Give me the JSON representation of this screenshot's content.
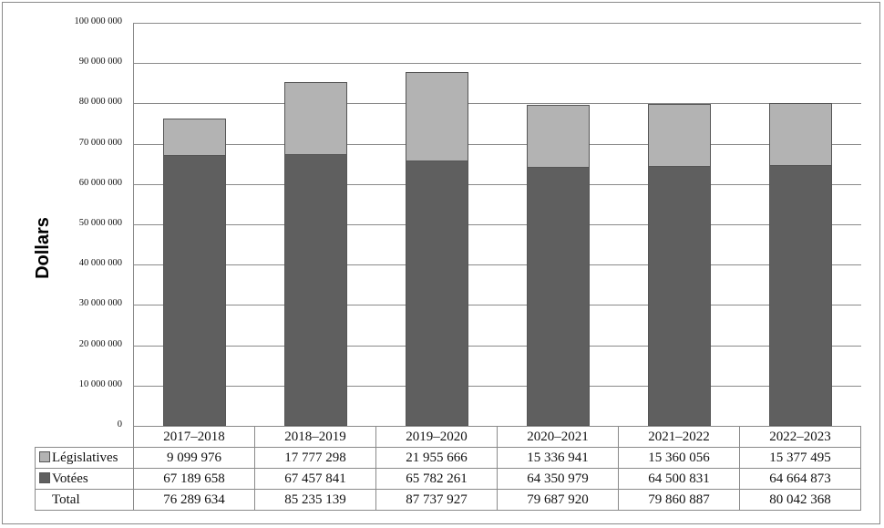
{
  "chart_data": {
    "type": "bar",
    "stacked": true,
    "title": "",
    "xlabel": "",
    "ylabel": "Dollars",
    "ylim": [
      0,
      100000000
    ],
    "yticks": [
      "0",
      "10 000 000",
      "20 000 000",
      "30 000 000",
      "40 000 000",
      "50 000 000",
      "60 000 000",
      "70 000 000",
      "80 000 000",
      "90 000 000",
      "100 000 000"
    ],
    "grid": true,
    "legend_position": "data-table",
    "categories": [
      "2017–2018",
      "2018–2019",
      "2019–2020",
      "2020–2021",
      "2021–2022",
      "2022–2023"
    ],
    "series": [
      {
        "name": "Législatives",
        "color": "#b3b3b3",
        "values": [
          9099976,
          17777298,
          21955666,
          15336941,
          15360056,
          15377495
        ],
        "labels": [
          "9 099 976",
          "17 777 298",
          "21 955 666",
          "15 336 941",
          "15 360 056",
          "15 377 495"
        ]
      },
      {
        "name": "Votées",
        "color": "#5f5f5f",
        "values": [
          67189658,
          67457841,
          65782261,
          64350979,
          64500831,
          64664873
        ],
        "labels": [
          "67 189 658",
          "67 457 841",
          "65 782 261",
          "64 350 979",
          "64 500 831",
          "64 664 873"
        ]
      }
    ],
    "totals": {
      "name": "Total",
      "values": [
        76289634,
        85235139,
        87737927,
        79687920,
        79860887,
        80042368
      ],
      "labels": [
        "76 289 634",
        "85 235 139",
        "87 737 927",
        "79 687 920",
        "79 860 887",
        "80 042 368"
      ]
    }
  }
}
